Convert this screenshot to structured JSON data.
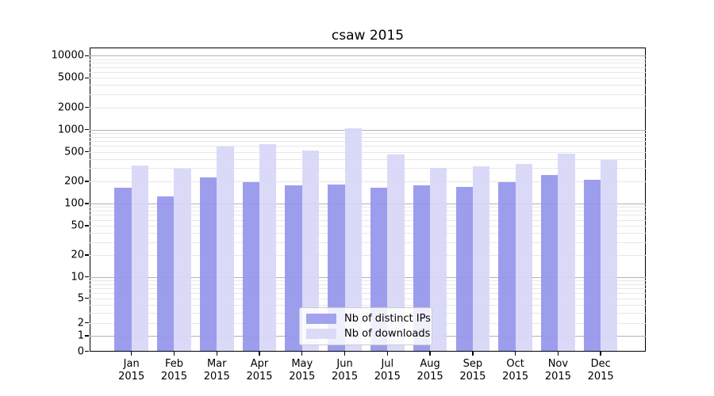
{
  "title": "csaw 2015",
  "chart_data": {
    "type": "bar",
    "title": "csaw 2015",
    "xlabel": "",
    "ylabel": "",
    "categories": [
      "Jan 2015",
      "Feb 2015",
      "Mar 2015",
      "Apr 2015",
      "May 2015",
      "Jun 2015",
      "Jul 2015",
      "Aug 2015",
      "Sep 2015",
      "Oct 2015",
      "Nov 2015",
      "Dec 2015"
    ],
    "series": [
      {
        "name": "Nb of distinct IPs",
        "color": "#a2a2ef",
        "values": [
          165,
          125,
          228,
          195,
          175,
          180,
          165,
          175,
          168,
          192,
          245,
          210
        ]
      },
      {
        "name": "Nb of downloads",
        "color": "#dbdbf8",
        "values": [
          330,
          295,
          590,
          630,
          520,
          1030,
          460,
          300,
          320,
          340,
          475,
          390
        ]
      }
    ],
    "y_axis": {
      "scale": "symlog (log with linear region near zero)",
      "ticks": [
        0,
        1,
        2,
        5,
        10,
        20,
        50,
        100,
        200,
        500,
        1000,
        2000,
        5000,
        10000
      ],
      "major_gridlines": [
        1,
        10,
        100,
        1000,
        10000
      ],
      "ylim": [
        0,
        14000
      ]
    },
    "grid": "horizontal major (gray) + minor (light gray)",
    "legend_position": "lower center inside plot"
  },
  "legend": {
    "items": [
      {
        "label": "Nb of distinct IPs"
      },
      {
        "label": "Nb of downloads"
      }
    ]
  }
}
